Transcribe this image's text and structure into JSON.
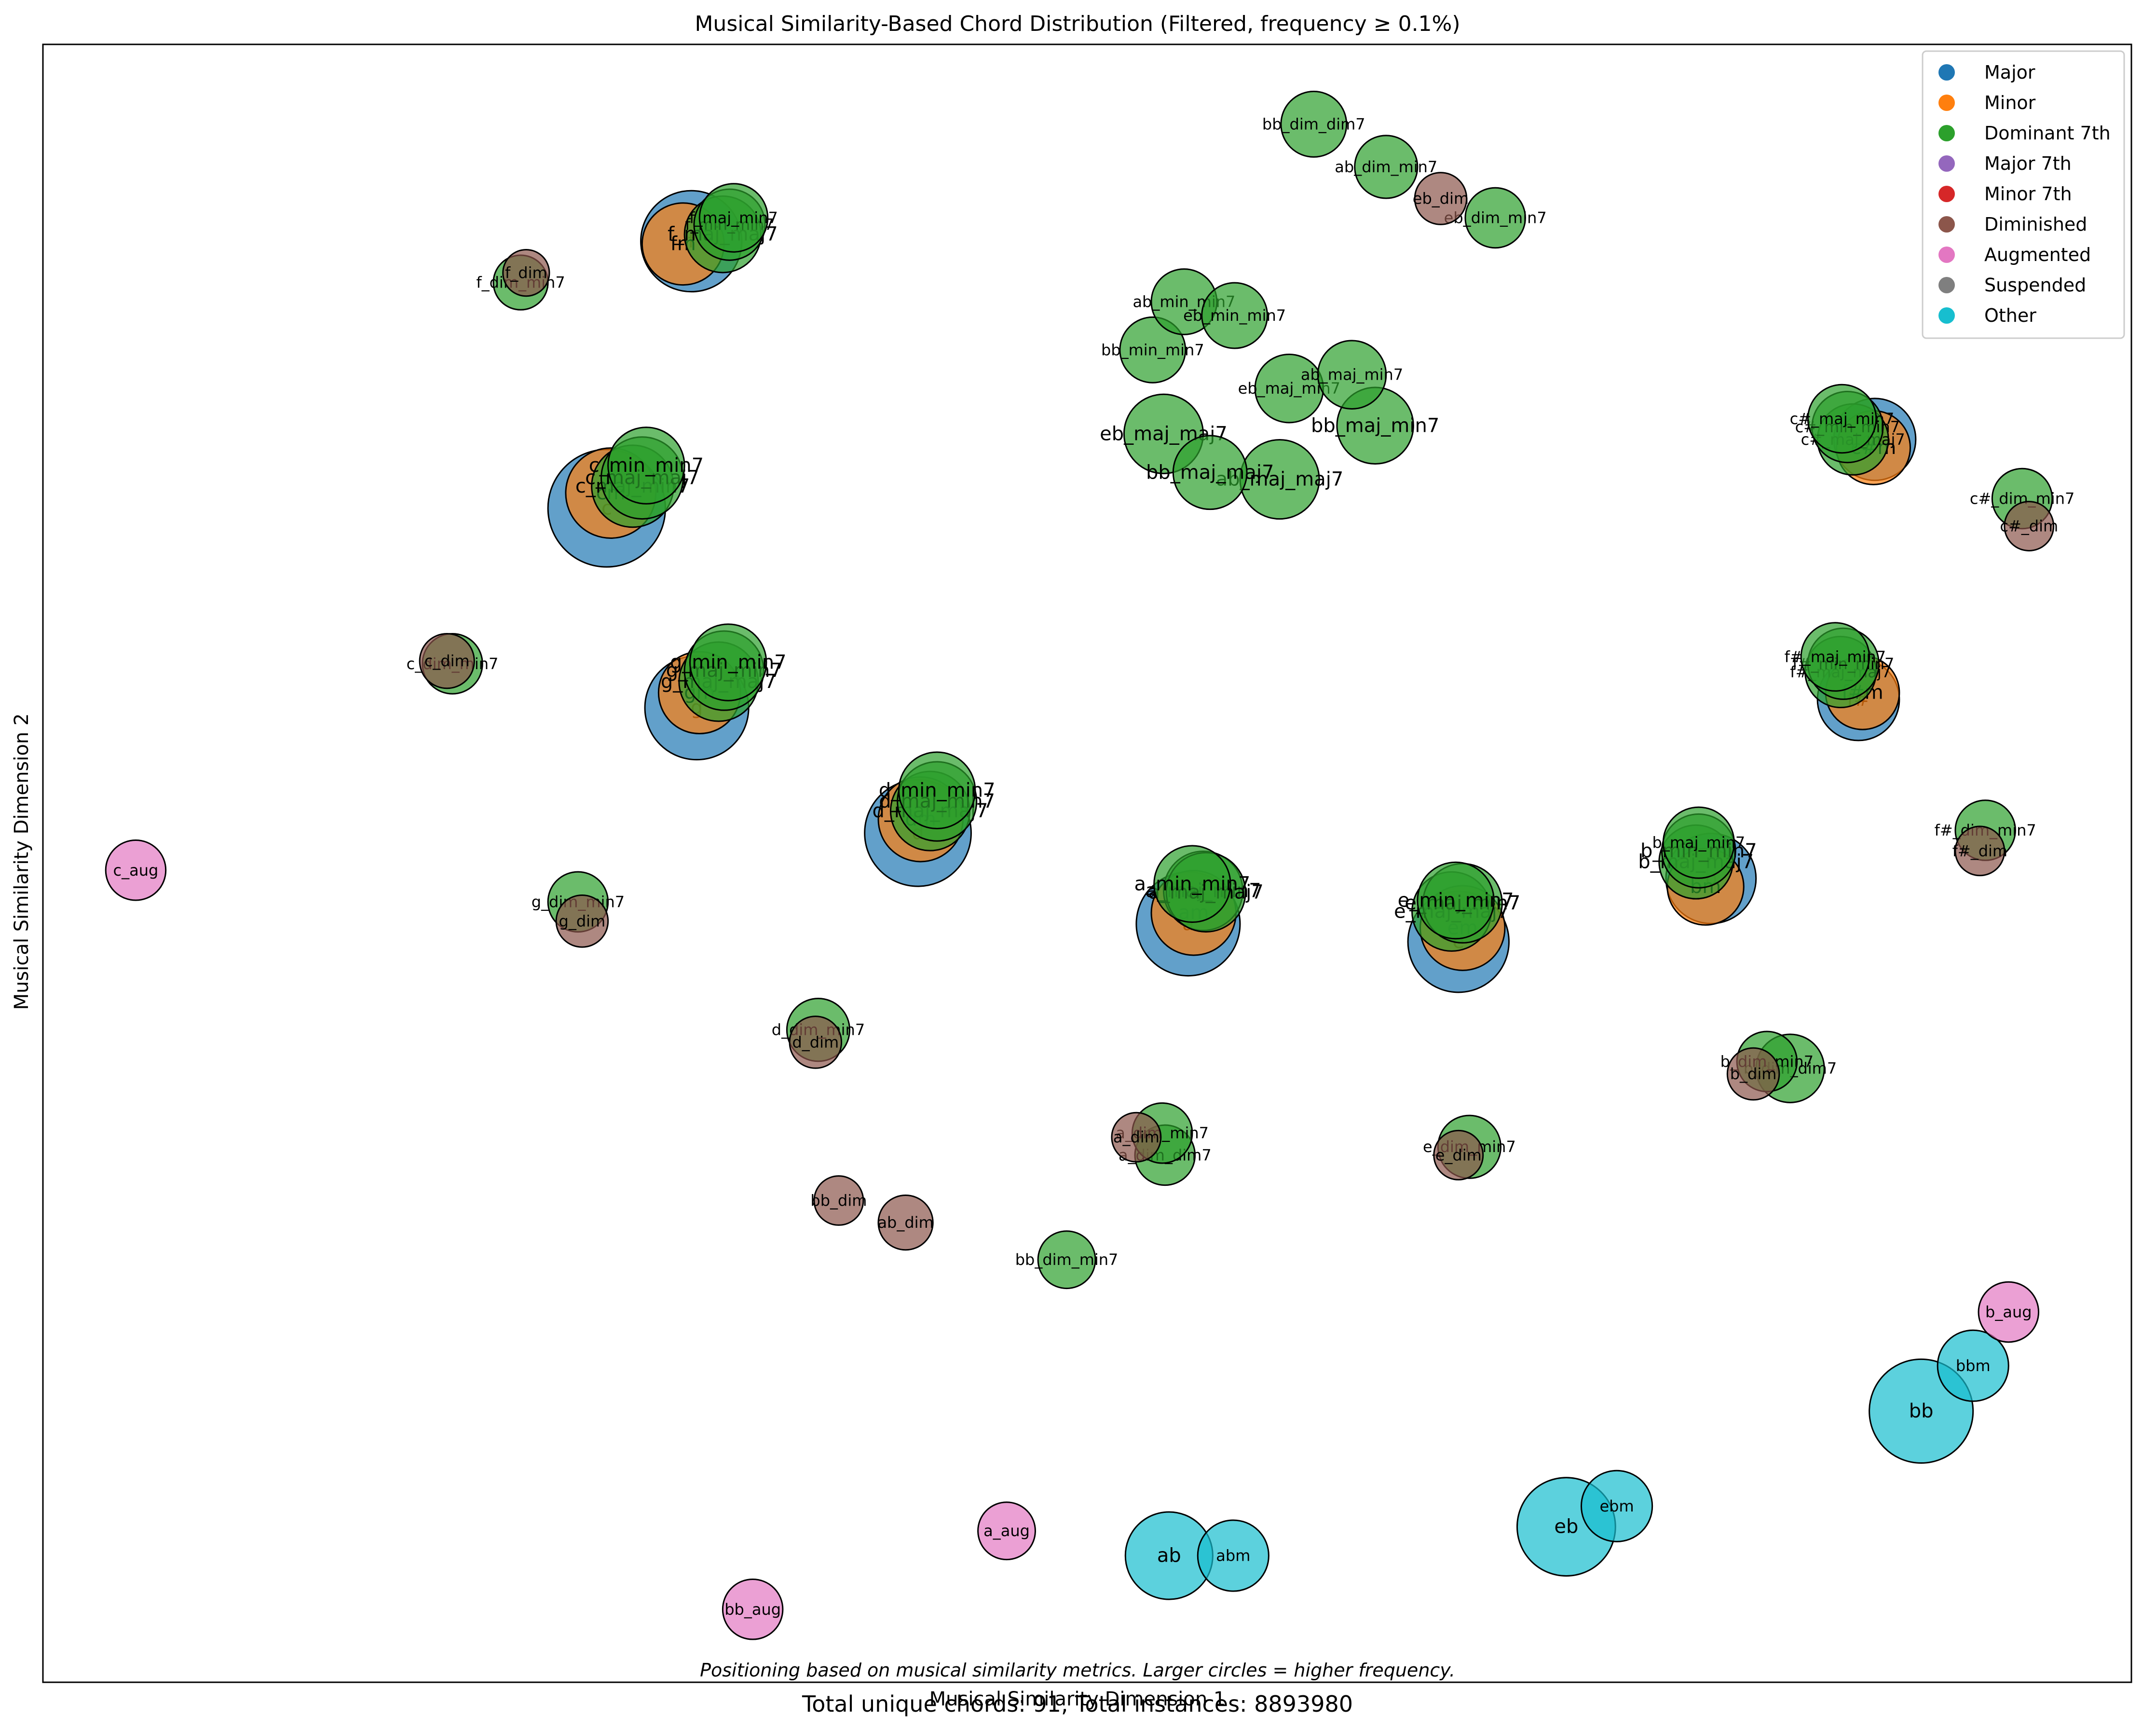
{
  "chart_data": {
    "type": "scatter",
    "title": "Musical Similarity-Based Chord Distribution (Filtered, frequency ≥ 0.1%)",
    "xlabel": "Musical Similarity Dimension 1",
    "ylabel": "Musical Similarity Dimension 2",
    "xlim": [
      0,
      1530
    ],
    "ylim": [
      0,
      1190
    ],
    "note": "Positioning based on musical similarity metrics. Larger circles = higher frequency.",
    "summary": "Total unique chords: 91, Total instances: 8893980",
    "legend_position": "top-right",
    "legend": [
      {
        "name": "Major",
        "color": "#1f77b4"
      },
      {
        "name": "Minor",
        "color": "#ff7f0e"
      },
      {
        "name": "Dominant 7th",
        "color": "#2ca02c"
      },
      {
        "name": "Major 7th",
        "color": "#9467bd"
      },
      {
        "name": "Minor 7th",
        "color": "#d62728"
      },
      {
        "name": "Diminished",
        "color": "#8c564b"
      },
      {
        "name": "Augmented",
        "color": "#e377c2"
      },
      {
        "name": "Suspended",
        "color": "#7f7f7f"
      },
      {
        "name": "Other",
        "color": "#17becf"
      }
    ],
    "points": [
      {
        "label": "c",
        "x": 413,
        "y": 853,
        "size": 43,
        "cat": "Major"
      },
      {
        "label": "cm",
        "x": 416,
        "y": 864,
        "size": 33,
        "cat": "Minor"
      },
      {
        "label": "c_maj_min7",
        "x": 432,
        "y": 869,
        "size": 30,
        "cat": "Dominant 7th"
      },
      {
        "label": "c_maj_maj7",
        "x": 439,
        "y": 875,
        "size": 30,
        "cat": "Dominant 7th"
      },
      {
        "label": "c_min_min7",
        "x": 442,
        "y": 884,
        "size": 28,
        "cat": "Dominant 7th"
      },
      {
        "label": "f",
        "x": 475,
        "y": 1047,
        "size": 37,
        "cat": "Major"
      },
      {
        "label": "fm",
        "x": 469,
        "y": 1045,
        "size": 30,
        "cat": "Minor"
      },
      {
        "label": "f_maj_maj7",
        "x": 498,
        "y": 1052,
        "size": 28,
        "cat": "Dominant 7th"
      },
      {
        "label": "f_min_min7",
        "x": 503,
        "y": 1059,
        "size": 26,
        "cat": "Dominant 7th"
      },
      {
        "label": "f_maj_min7",
        "x": 506,
        "y": 1064,
        "size": 25,
        "cat": "Dominant 7th"
      },
      {
        "label": "f_dim",
        "x": 354,
        "y": 1024,
        "size": 17,
        "cat": "Diminished"
      },
      {
        "label": "f_dim_min7",
        "x": 350,
        "y": 1017,
        "size": 20,
        "cat": "Dominant 7th"
      },
      {
        "label": "g",
        "x": 479,
        "y": 708,
        "size": 38,
        "cat": "Major"
      },
      {
        "label": "gm",
        "x": 481,
        "y": 719,
        "size": 30,
        "cat": "Minor"
      },
      {
        "label": "g_maj_maj7",
        "x": 495,
        "y": 727,
        "size": 29,
        "cat": "Dominant 7th"
      },
      {
        "label": "g_maj_min7",
        "x": 499,
        "y": 735,
        "size": 29,
        "cat": "Dominant 7th"
      },
      {
        "label": "g_min_min7",
        "x": 502,
        "y": 741,
        "size": 28,
        "cat": "Dominant 7th"
      },
      {
        "label": "c_dim",
        "x": 296,
        "y": 742,
        "size": 20,
        "cat": "Diminished"
      },
      {
        "label": "c_dim_min7",
        "x": 300,
        "y": 740,
        "size": 22,
        "cat": "Dominant 7th"
      },
      {
        "label": "d",
        "x": 641,
        "y": 617,
        "size": 39,
        "cat": "Major"
      },
      {
        "label": "dm",
        "x": 643,
        "y": 627,
        "size": 31,
        "cat": "Minor"
      },
      {
        "label": "d_maj_maj7",
        "x": 650,
        "y": 633,
        "size": 29,
        "cat": "Dominant 7th"
      },
      {
        "label": "d_maj_min7",
        "x": 655,
        "y": 640,
        "size": 29,
        "cat": "Dominant 7th"
      },
      {
        "label": "d_min_min7",
        "x": 655,
        "y": 648,
        "size": 28,
        "cat": "Dominant 7th"
      },
      {
        "label": "d_dim",
        "x": 566,
        "y": 465,
        "size": 19,
        "cat": "Diminished"
      },
      {
        "label": "d_dim_min7",
        "x": 568,
        "y": 474,
        "size": 23,
        "cat": "Dominant 7th"
      },
      {
        "label": "a",
        "x": 839,
        "y": 551,
        "size": 38,
        "cat": "Major"
      },
      {
        "label": "am",
        "x": 843,
        "y": 559,
        "size": 31,
        "cat": "Minor"
      },
      {
        "label": "a_maj_min7",
        "x": 850,
        "y": 575,
        "size": 29,
        "cat": "Dominant 7th"
      },
      {
        "label": "a_maj_maj7",
        "x": 852,
        "y": 574,
        "size": 29,
        "cat": "Dominant 7th"
      },
      {
        "label": "a_min_min7",
        "x": 842,
        "y": 580,
        "size": 28,
        "cat": "Dominant 7th"
      },
      {
        "label": "a_dim",
        "x": 801,
        "y": 396,
        "size": 18,
        "cat": "Diminished"
      },
      {
        "label": "a_dim_dim7",
        "x": 822,
        "y": 383,
        "size": 22,
        "cat": "Dominant 7th"
      },
      {
        "label": "a_dim_min7",
        "x": 820,
        "y": 399,
        "size": 22,
        "cat": "Dominant 7th"
      },
      {
        "label": "e",
        "x": 1037,
        "y": 538,
        "size": 37,
        "cat": "Major"
      },
      {
        "label": "em",
        "x": 1040,
        "y": 548,
        "size": 31,
        "cat": "Minor"
      },
      {
        "label": "e_maj_maj7",
        "x": 1032,
        "y": 560,
        "size": 29,
        "cat": "Dominant 7th"
      },
      {
        "label": "e_maj_min7",
        "x": 1040,
        "y": 566,
        "size": 29,
        "cat": "Dominant 7th"
      },
      {
        "label": "e_min_min7",
        "x": 1035,
        "y": 568,
        "size": 28,
        "cat": "Dominant 7th"
      },
      {
        "label": "e_dim",
        "x": 1037,
        "y": 383,
        "size": 18,
        "cat": "Diminished"
      },
      {
        "label": "e_dim_min7",
        "x": 1045,
        "y": 389,
        "size": 23,
        "cat": "Dominant 7th"
      },
      {
        "label": "b",
        "x": 1222,
        "y": 584,
        "size": 33,
        "cat": "Major"
      },
      {
        "label": "bm",
        "x": 1218,
        "y": 578,
        "size": 28,
        "cat": "Minor"
      },
      {
        "label": "b_maj_maj7",
        "x": 1211,
        "y": 596,
        "size": 27,
        "cat": "Dominant 7th"
      },
      {
        "label": "b_min_min7",
        "x": 1213,
        "y": 604,
        "size": 27,
        "cat": "Dominant 7th"
      },
      {
        "label": "b_maj_min7",
        "x": 1213,
        "y": 610,
        "size": 26,
        "cat": "Dominant 7th"
      },
      {
        "label": "b_dim",
        "x": 1253,
        "y": 442,
        "size": 19,
        "cat": "Diminished"
      },
      {
        "label": "b_dim_min7",
        "x": 1263,
        "y": 451,
        "size": 22,
        "cat": "Dominant 7th"
      },
      {
        "label": "b_dim_dim7",
        "x": 1280,
        "y": 446,
        "size": 25,
        "cat": "Dominant 7th"
      },
      {
        "label": "f#",
        "x": 1330,
        "y": 714,
        "size": 30,
        "cat": "Major"
      },
      {
        "label": "f#m",
        "x": 1333,
        "y": 719,
        "size": 27,
        "cat": "Minor"
      },
      {
        "label": "f#_maj_maj7",
        "x": 1317,
        "y": 734,
        "size": 26,
        "cat": "Dominant 7th"
      },
      {
        "label": "f#_min_min7",
        "x": 1319,
        "y": 740,
        "size": 26,
        "cat": "Dominant 7th"
      },
      {
        "label": "f#_maj_min7",
        "x": 1313,
        "y": 745,
        "size": 25,
        "cat": "Dominant 7th"
      },
      {
        "label": "f#_dim",
        "x": 1419,
        "y": 604,
        "size": 18,
        "cat": "Diminished"
      },
      {
        "label": "f#_dim_min7",
        "x": 1423,
        "y": 619,
        "size": 22,
        "cat": "Dominant 7th"
      },
      {
        "label": "c#",
        "x": 1342,
        "y": 903,
        "size": 30,
        "cat": "Major"
      },
      {
        "label": "c#m",
        "x": 1341,
        "y": 897,
        "size": 27,
        "cat": "Minor"
      },
      {
        "label": "c#_maj_maj7",
        "x": 1326,
        "y": 903,
        "size": 26,
        "cat": "Dominant 7th"
      },
      {
        "label": "c#_min_min7",
        "x": 1322,
        "y": 912,
        "size": 26,
        "cat": "Dominant 7th"
      },
      {
        "label": "c#_maj_min7",
        "x": 1318,
        "y": 918,
        "size": 25,
        "cat": "Dominant 7th"
      },
      {
        "label": "c#_dim",
        "x": 1455,
        "y": 840,
        "size": 18,
        "cat": "Diminished"
      },
      {
        "label": "c#_dim_min7",
        "x": 1450,
        "y": 860,
        "size": 22,
        "cat": "Dominant 7th"
      },
      {
        "label": "eb_maj_maj7",
        "x": 821,
        "y": 907,
        "size": 29,
        "cat": "Dominant 7th"
      },
      {
        "label": "bb_maj_maj7",
        "x": 855,
        "y": 879,
        "size": 27,
        "cat": "Dominant 7th"
      },
      {
        "label": "ab_maj_maj7",
        "x": 906,
        "y": 874,
        "size": 29,
        "cat": "Dominant 7th"
      },
      {
        "label": "bb_maj_min7",
        "x": 976,
        "y": 913,
        "size": 28,
        "cat": "Dominant 7th"
      },
      {
        "label": "eb_maj_min7",
        "x": 913,
        "y": 940,
        "size": 25,
        "cat": "Dominant 7th"
      },
      {
        "label": "ab_maj_min7",
        "x": 959,
        "y": 950,
        "size": 25,
        "cat": "Dominant 7th"
      },
      {
        "label": "bb_min_min7",
        "x": 813,
        "y": 968,
        "size": 24,
        "cat": "Dominant 7th"
      },
      {
        "label": "ab_min_min7",
        "x": 836,
        "y": 1003,
        "size": 24,
        "cat": "Dominant 7th"
      },
      {
        "label": "eb_min_min7",
        "x": 873,
        "y": 993,
        "size": 24,
        "cat": "Dominant 7th"
      },
      {
        "label": "bb_dim_dim7",
        "x": 931,
        "y": 1132,
        "size": 24,
        "cat": "Dominant 7th"
      },
      {
        "label": "ab_dim_min7",
        "x": 984,
        "y": 1101,
        "size": 23,
        "cat": "Dominant 7th"
      },
      {
        "label": "eb_dim",
        "x": 1024,
        "y": 1078,
        "size": 19,
        "cat": "Diminished"
      },
      {
        "label": "eb_dim_min7",
        "x": 1064,
        "y": 1064,
        "size": 22,
        "cat": "Dominant 7th"
      },
      {
        "label": "c_aug",
        "x": 68,
        "y": 590,
        "size": 22,
        "cat": "Augmented"
      },
      {
        "label": "g_dim",
        "x": 395,
        "y": 553,
        "size": 19,
        "cat": "Diminished"
      },
      {
        "label": "g_dim_min7",
        "x": 392,
        "y": 567,
        "size": 22,
        "cat": "Dominant 7th"
      },
      {
        "label": "bb_dim",
        "x": 583,
        "y": 350,
        "size": 18,
        "cat": "Diminished"
      },
      {
        "label": "ab_dim",
        "x": 632,
        "y": 334,
        "size": 20,
        "cat": "Diminished"
      },
      {
        "label": "bb_dim_min7",
        "x": 750,
        "y": 307,
        "size": 21,
        "cat": "Dominant 7th"
      },
      {
        "label": "b_aug",
        "x": 1440,
        "y": 269,
        "size": 22,
        "cat": "Augmented"
      },
      {
        "label": "bbm",
        "x": 1414,
        "y": 230,
        "size": 26,
        "cat": "Other"
      },
      {
        "label": "bb",
        "x": 1376,
        "y": 197,
        "size": 38,
        "cat": "Other"
      },
      {
        "label": "ebm",
        "x": 1153,
        "y": 128,
        "size": 26,
        "cat": "Other"
      },
      {
        "label": "eb",
        "x": 1116,
        "y": 113,
        "size": 36,
        "cat": "Other"
      },
      {
        "label": "a_aug",
        "x": 706,
        "y": 110,
        "size": 21,
        "cat": "Augmented"
      },
      {
        "label": "ab",
        "x": 825,
        "y": 92,
        "size": 32,
        "cat": "Other"
      },
      {
        "label": "abm",
        "x": 872,
        "y": 92,
        "size": 26,
        "cat": "Other"
      },
      {
        "label": "bb_aug",
        "x": 520,
        "y": 53,
        "size": 22,
        "cat": "Augmented"
      }
    ]
  }
}
